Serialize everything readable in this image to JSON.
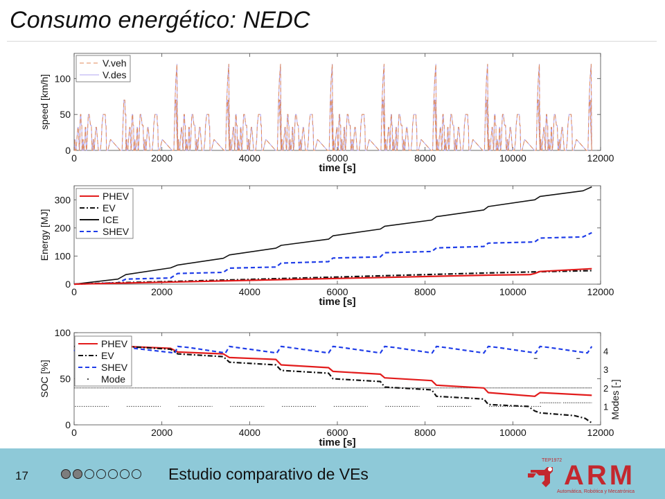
{
  "slide": {
    "title": "Consumo energético: NEDC",
    "page_number": "17",
    "footer_text": "Estudio comparativo de VEs",
    "progress": {
      "total": 7,
      "current": 2
    },
    "logo": {
      "text": "ARM",
      "small_text": "TEP1972",
      "subtitle": "Automática, Robótica y Mecatrónica",
      "color": "#c3282e"
    }
  },
  "chart_data": [
    {
      "type": "line",
      "xlabel": "time [s]",
      "ylabel": "speed [km/h]",
      "xlim": [
        0,
        12000
      ],
      "ylim": [
        0,
        135
      ],
      "xticks": [
        0,
        2000,
        4000,
        6000,
        8000,
        10000,
        12000
      ],
      "yticks": [
        0,
        50,
        100
      ],
      "legend": "top-left",
      "grid": false,
      "cycle_period_s": 1180,
      "cycles": 10,
      "series": [
        {
          "name": "V.veh",
          "color": "#e08a5a",
          "style": "dashed",
          "cycle_profile_t": [
            0,
            11,
            15,
            23,
            28,
            49,
            61,
            85,
            96,
            117,
            122,
            133,
            135,
            143,
            155,
            163,
            176,
            178,
            188,
            195,
            201,
            207,
            214,
            226,
            248,
            253,
            265,
            277,
            285,
            300,
            312,
            324,
            344,
            372,
            393,
            409,
            413,
            421,
            433,
            444,
            448,
            460,
            475,
            496,
            510,
            553,
            598,
            622,
            635,
            662,
            710,
            718,
            728,
            738,
            741,
            770,
            828,
            833,
            1053,
            1093,
            1133,
            1155,
            1165,
            1180
          ],
          "cycle_profile_v": [
            0,
            0,
            15,
            15,
            0,
            0,
            15,
            32,
            32,
            0,
            0,
            15,
            35,
            50,
            50,
            35,
            35,
            0,
            0,
            0,
            15,
            15,
            0,
            0,
            15,
            32,
            32,
            0,
            0,
            15,
            35,
            50,
            50,
            35,
            35,
            0,
            0,
            0,
            15,
            15,
            0,
            0,
            15,
            32,
            32,
            0,
            0,
            15,
            35,
            50,
            50,
            35,
            35,
            0,
            0,
            0,
            15,
            15,
            0,
            0,
            70,
            70,
            50,
            50
          ]
        },
        {
          "name": "V.des",
          "color": "#b1a6f0",
          "style": "solid"
        }
      ],
      "extra_peaks_kmh": [
        70,
        100,
        120
      ]
    },
    {
      "type": "line",
      "xlabel": "time [s]",
      "ylabel": "Energy [MJ]",
      "xlim": [
        0,
        12000
      ],
      "ylim": [
        0,
        350
      ],
      "xticks": [
        0,
        2000,
        4000,
        6000,
        8000,
        10000,
        12000
      ],
      "yticks": [
        0,
        100,
        200,
        300
      ],
      "legend": "top-left",
      "grid": false,
      "series": [
        {
          "name": "PHEV",
          "color": "#e21b1b",
          "style": "solid",
          "x": [
            0,
            1180,
            2360,
            3540,
            4720,
            5900,
            7080,
            8260,
            9440,
            10400,
            10500,
            10620,
            11800
          ],
          "y": [
            0,
            4,
            8,
            12,
            16,
            20,
            24,
            28,
            32,
            34,
            38,
            45,
            55
          ]
        },
        {
          "name": "EV",
          "color": "#111111",
          "style": "dashdot",
          "x": [
            0,
            1180,
            2360,
            3540,
            4720,
            5900,
            7080,
            8260,
            9440,
            10620,
            11800
          ],
          "y": [
            0,
            6,
            10,
            15,
            20,
            25,
            30,
            35,
            40,
            44,
            48
          ]
        },
        {
          "name": "ICE",
          "color": "#111111",
          "style": "solid",
          "x": [
            0,
            1000,
            1180,
            2200,
            2360,
            3400,
            3540,
            4600,
            4720,
            5800,
            5900,
            6980,
            7080,
            8150,
            8260,
            9340,
            9440,
            10500,
            10620,
            11600,
            11800
          ],
          "y": [
            0,
            18,
            34,
            58,
            68,
            92,
            104,
            128,
            138,
            160,
            172,
            196,
            206,
            228,
            240,
            264,
            276,
            300,
            312,
            332,
            346
          ]
        },
        {
          "name": "SHEV",
          "color": "#1f3de8",
          "style": "dashed",
          "x": [
            0,
            1000,
            1180,
            2200,
            2360,
            3400,
            3540,
            4600,
            4720,
            5800,
            5900,
            6980,
            7080,
            8150,
            8260,
            9340,
            9440,
            10500,
            10620,
            11600,
            11800
          ],
          "y": [
            0,
            5,
            18,
            22,
            38,
            42,
            57,
            61,
            75,
            80,
            93,
            97,
            112,
            116,
            129,
            134,
            146,
            150,
            164,
            168,
            183
          ]
        }
      ]
    },
    {
      "type": "line",
      "xlabel": "time [s]",
      "ylabel": "SOC [%]",
      "y2label": "Modes [-]",
      "xlim": [
        0,
        12000
      ],
      "ylim": [
        0,
        100
      ],
      "y2lim": [
        0,
        5
      ],
      "xticks": [
        0,
        2000,
        4000,
        6000,
        8000,
        10000,
        12000
      ],
      "yticks": [
        0,
        50,
        100
      ],
      "y2ticks": [
        1,
        2,
        3,
        4
      ],
      "legend": "top-right",
      "grid": false,
      "series": [
        {
          "name": "PHEV",
          "color": "#e21b1b",
          "style": "solid",
          "x": [
            0,
            1180,
            2200,
            2360,
            3400,
            3540,
            4600,
            4720,
            5800,
            5900,
            6980,
            7080,
            8150,
            8260,
            9340,
            9440,
            10500,
            10620,
            11800
          ],
          "y": [
            85,
            85,
            83,
            79,
            77,
            73,
            71,
            65,
            62,
            58,
            55,
            51,
            48,
            43,
            40,
            35,
            31,
            35,
            32
          ]
        },
        {
          "name": "EV",
          "color": "#111111",
          "style": "dashdot",
          "x": [
            0,
            1180,
            2200,
            2360,
            3400,
            3540,
            4600,
            4720,
            5800,
            5900,
            6980,
            7080,
            8150,
            8260,
            9340,
            9440,
            10350,
            10500,
            10620,
            11400,
            11650,
            11800
          ],
          "y": [
            85,
            85,
            82,
            77,
            74,
            68,
            65,
            59,
            56,
            50,
            47,
            41,
            38,
            31,
            28,
            22,
            20,
            15,
            13,
            10,
            7,
            2
          ]
        },
        {
          "name": "SHEV",
          "color": "#1f3de8",
          "style": "dashed",
          "x": [
            0,
            120,
            300,
            1180,
            2300,
            2360,
            2600,
            3450,
            3540,
            3700,
            4620,
            4720,
            4900,
            5800,
            5900,
            6100,
            6980,
            7080,
            7300,
            8160,
            8260,
            8450,
            9340,
            9440,
            9650,
            10520,
            10620,
            10820,
            11700,
            11800
          ],
          "y": [
            80,
            86,
            84,
            84,
            78,
            85,
            84,
            78,
            85,
            84,
            78,
            85,
            84,
            78,
            85,
            84,
            78,
            85,
            84,
            78,
            85,
            84,
            78,
            85,
            84,
            78,
            85,
            84,
            78,
            85
          ]
        },
        {
          "name": "Mode",
          "color": "#111111",
          "style": "dots",
          "levels": [
            1,
            2,
            3,
            4
          ]
        }
      ]
    }
  ]
}
